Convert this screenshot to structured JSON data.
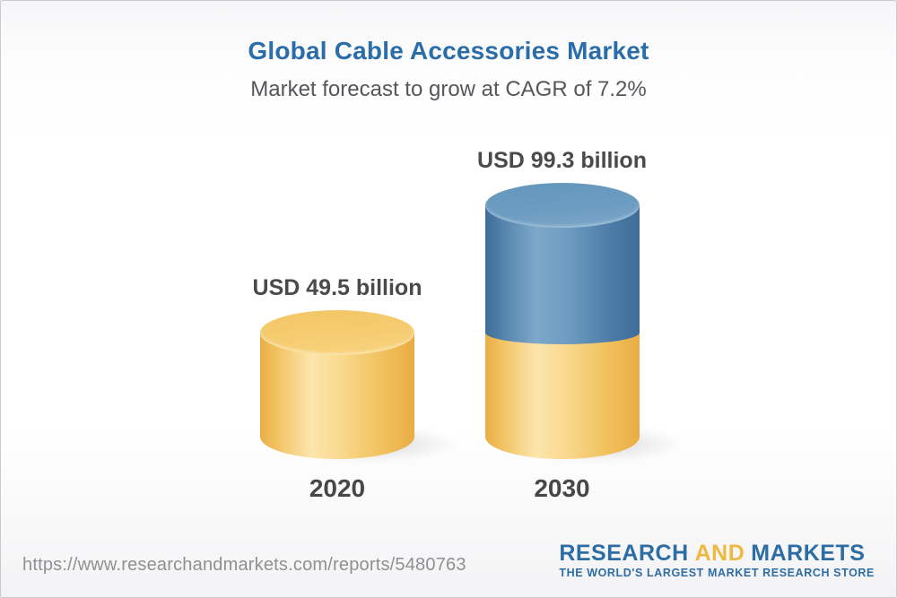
{
  "page": {
    "background_top": "#f6f6f8",
    "background_bottom": "#f3f3f5",
    "border_color": "#c9cacb"
  },
  "chart_data": {
    "type": "bar",
    "style": "3d-cylinder-stacked",
    "title": "Global Cable Accessories Market",
    "subtitle": "Market forecast to grow at CAGR of 7.2%",
    "cagr_percent": 7.2,
    "unit": "USD billion",
    "categories": [
      "2020",
      "2030"
    ],
    "values": [
      49.5,
      99.3
    ],
    "value_labels": [
      "USD 49.5 billion",
      "USD 99.3 billion"
    ],
    "legend": "none",
    "grid": false,
    "bars": [
      {
        "category": "2020",
        "total": 49.5,
        "label": "USD 49.5 billion",
        "segments": [
          {
            "name": "market-size-2020",
            "value": 49.5,
            "color_key": "gold"
          }
        ]
      },
      {
        "category": "2030",
        "total": 99.3,
        "label": "USD 99.3 billion",
        "segments": [
          {
            "name": "baseline-2020",
            "value": 49.5,
            "color_key": "gold"
          },
          {
            "name": "growth-2020-2030",
            "value": 49.8,
            "color_key": "blue"
          }
        ]
      }
    ],
    "colors": {
      "gold": "#f0bd57",
      "blue": "#537fa9",
      "title_text": "#2b6da8",
      "subtitle_text": "#55575a",
      "label_text": "#484a4c"
    }
  },
  "footer": {
    "url": "https://www.researchandmarkets.com/reports/5480763",
    "logo": {
      "word1": "RESEARCH",
      "word2": "AND",
      "word3": "MARKETS",
      "tagline": "THE WORLD'S LARGEST MARKET RESEARCH STORE",
      "blue": "#2d6da5",
      "gold": "#efb93f"
    }
  }
}
